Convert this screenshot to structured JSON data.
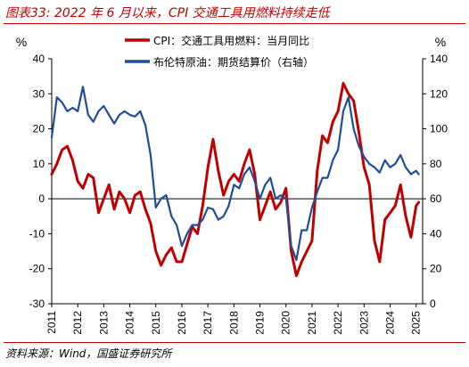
{
  "header": {
    "title": "图表33:  2022 年 6 月以来，CPI 交通工具用燃料持续走低"
  },
  "footer": {
    "source": "资料来源：Wind，国盛证券研究所"
  },
  "chart_data": {
    "type": "line",
    "x_ticks": [
      "2011",
      "2012",
      "2013",
      "2014",
      "2015",
      "2016",
      "2017",
      "2018",
      "2019",
      "2020",
      "2021",
      "2022",
      "2023",
      "2024",
      "2025"
    ],
    "y_left": {
      "unit": "%",
      "min": -30,
      "max": 40,
      "ticks": [
        -30,
        -20,
        -10,
        0,
        10,
        20,
        30,
        40
      ]
    },
    "y_right": {
      "unit": "%",
      "min": 0,
      "max": 140,
      "ticks": [
        0,
        20,
        40,
        60,
        80,
        100,
        120,
        140
      ]
    },
    "grid": false,
    "legend_position": "top-center",
    "series": [
      {
        "name": "CPI：交通工具用燃料：当月同比",
        "axis": "left",
        "color": "#c00000",
        "x": [
          2011.0,
          2011.2,
          2011.4,
          2011.6,
          2011.8,
          2012.0,
          2012.2,
          2012.4,
          2012.6,
          2012.8,
          2013.0,
          2013.2,
          2013.4,
          2013.6,
          2013.8,
          2014.0,
          2014.2,
          2014.4,
          2014.6,
          2014.8,
          2015.0,
          2015.2,
          2015.4,
          2015.6,
          2015.8,
          2016.0,
          2016.2,
          2016.4,
          2016.6,
          2016.8,
          2017.0,
          2017.2,
          2017.4,
          2017.6,
          2017.8,
          2018.0,
          2018.2,
          2018.4,
          2018.6,
          2018.8,
          2019.0,
          2019.2,
          2019.4,
          2019.6,
          2019.8,
          2020.0,
          2020.2,
          2020.4,
          2020.6,
          2020.8,
          2021.0,
          2021.2,
          2021.4,
          2021.6,
          2021.8,
          2022.0,
          2022.2,
          2022.4,
          2022.6,
          2022.8,
          2023.0,
          2023.2,
          2023.4,
          2023.6,
          2023.8,
          2024.0,
          2024.2,
          2024.4,
          2024.6,
          2024.8,
          2025.0,
          2025.1
        ],
        "values": [
          7,
          10,
          14,
          15,
          11,
          5,
          3,
          7,
          6,
          -4,
          0,
          4,
          -3,
          2,
          0,
          -4,
          1,
          2,
          -3,
          -7,
          -15,
          -19,
          -16,
          -14,
          -18,
          -18,
          -13,
          -8,
          -10,
          -2,
          9,
          17,
          8,
          1,
          5,
          7,
          5,
          10,
          14,
          7,
          -6,
          -2,
          2,
          -3,
          -1,
          3,
          -15,
          -22,
          -18,
          -15,
          -12,
          8,
          18,
          16,
          22,
          25,
          33,
          30,
          28,
          19,
          9,
          4,
          -12,
          -18,
          -6,
          -4,
          -2,
          4,
          -5,
          -11,
          -2,
          -1
        ]
      },
      {
        "name": "布伦特原油：期货结算价（右轴）",
        "axis": "right",
        "color": "#1f4e99",
        "x": [
          2011.0,
          2011.2,
          2011.4,
          2011.6,
          2011.8,
          2012.0,
          2012.2,
          2012.4,
          2012.6,
          2012.8,
          2013.0,
          2013.2,
          2013.4,
          2013.6,
          2013.8,
          2014.0,
          2014.2,
          2014.4,
          2014.6,
          2014.8,
          2015.0,
          2015.2,
          2015.4,
          2015.6,
          2015.8,
          2016.0,
          2016.2,
          2016.4,
          2016.6,
          2016.8,
          2017.0,
          2017.2,
          2017.4,
          2017.6,
          2017.8,
          2018.0,
          2018.2,
          2018.4,
          2018.6,
          2018.8,
          2019.0,
          2019.2,
          2019.4,
          2019.6,
          2019.8,
          2020.0,
          2020.2,
          2020.4,
          2020.6,
          2020.8,
          2021.0,
          2021.2,
          2021.4,
          2021.6,
          2021.8,
          2022.0,
          2022.2,
          2022.4,
          2022.6,
          2022.8,
          2023.0,
          2023.2,
          2023.4,
          2023.6,
          2023.8,
          2024.0,
          2024.2,
          2024.4,
          2024.6,
          2024.8,
          2025.0,
          2025.1
        ],
        "values": [
          95,
          118,
          115,
          110,
          112,
          110,
          124,
          108,
          104,
          110,
          113,
          108,
          103,
          108,
          110,
          108,
          107,
          110,
          102,
          85,
          55,
          60,
          62,
          50,
          45,
          33,
          40,
          45,
          45,
          48,
          55,
          54,
          48,
          50,
          56,
          68,
          66,
          74,
          78,
          70,
          60,
          68,
          72,
          60,
          62,
          60,
          33,
          25,
          42,
          42,
          55,
          64,
          72,
          72,
          82,
          88,
          110,
          118,
          100,
          90,
          84,
          80,
          78,
          75,
          82,
          78,
          80,
          85,
          78,
          74,
          76,
          74
        ]
      }
    ]
  }
}
